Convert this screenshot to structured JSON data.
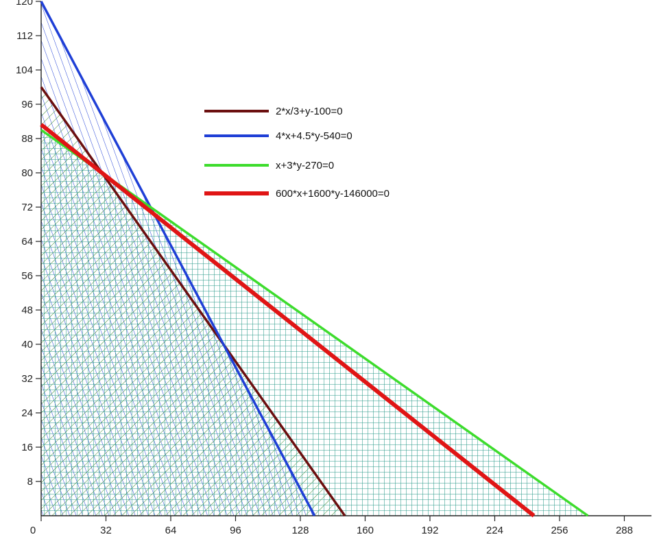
{
  "chart_data": {
    "type": "line",
    "title": "",
    "xlabel": "",
    "ylabel": "",
    "xlim": [
      0,
      300
    ],
    "ylim": [
      0,
      123
    ],
    "x_ticks": [
      0,
      32,
      64,
      96,
      128,
      160,
      192,
      224,
      256,
      288
    ],
    "y_ticks": [
      8,
      16,
      24,
      32,
      40,
      48,
      56,
      64,
      72,
      80,
      88,
      96,
      104,
      112,
      120
    ],
    "x_tick_labels": [
      "0",
      "32",
      "64",
      "96",
      "128",
      "160",
      "192",
      "224",
      "256",
      "288"
    ],
    "y_tick_labels": [
      "8",
      "16",
      "24",
      "32",
      "40",
      "48",
      "56",
      "64",
      "72",
      "80",
      "88",
      "96",
      "104",
      "112",
      "120"
    ],
    "grid": false,
    "legend_position": "upper-middle",
    "series": [
      {
        "name": "2*x/3+y-100=0",
        "color": "#6b0f0f",
        "points": [
          [
            0,
            100
          ],
          [
            150,
            0
          ]
        ]
      },
      {
        "name": "4*x+4.5*y-540=0",
        "color": "#1f3fd6",
        "points": [
          [
            0,
            120
          ],
          [
            135,
            0
          ]
        ]
      },
      {
        "name": "x+3*y-270=0",
        "color": "#3ddc2c",
        "points": [
          [
            0,
            90
          ],
          [
            270,
            0
          ]
        ]
      },
      {
        "name": "600*x+1600*y-146000=0",
        "color": "#e01515",
        "points": [
          [
            0,
            91.25
          ],
          [
            243.33,
            0
          ]
        ]
      }
    ],
    "hatched_regions": [
      {
        "color": "#1f3fd6",
        "pattern": "diagonal",
        "boundary": [
          [
            0,
            0
          ],
          [
            0,
            120
          ],
          [
            135,
            0
          ]
        ]
      },
      {
        "color": "#3a8a2e",
        "pattern": "anti-diagonal",
        "boundary": [
          [
            0,
            0
          ],
          [
            0,
            100
          ],
          [
            150,
            0
          ]
        ]
      },
      {
        "color": "#2a9a8a",
        "pattern": "grid",
        "boundary": [
          [
            0,
            0
          ],
          [
            0,
            90
          ],
          [
            270,
            0
          ]
        ]
      }
    ]
  }
}
